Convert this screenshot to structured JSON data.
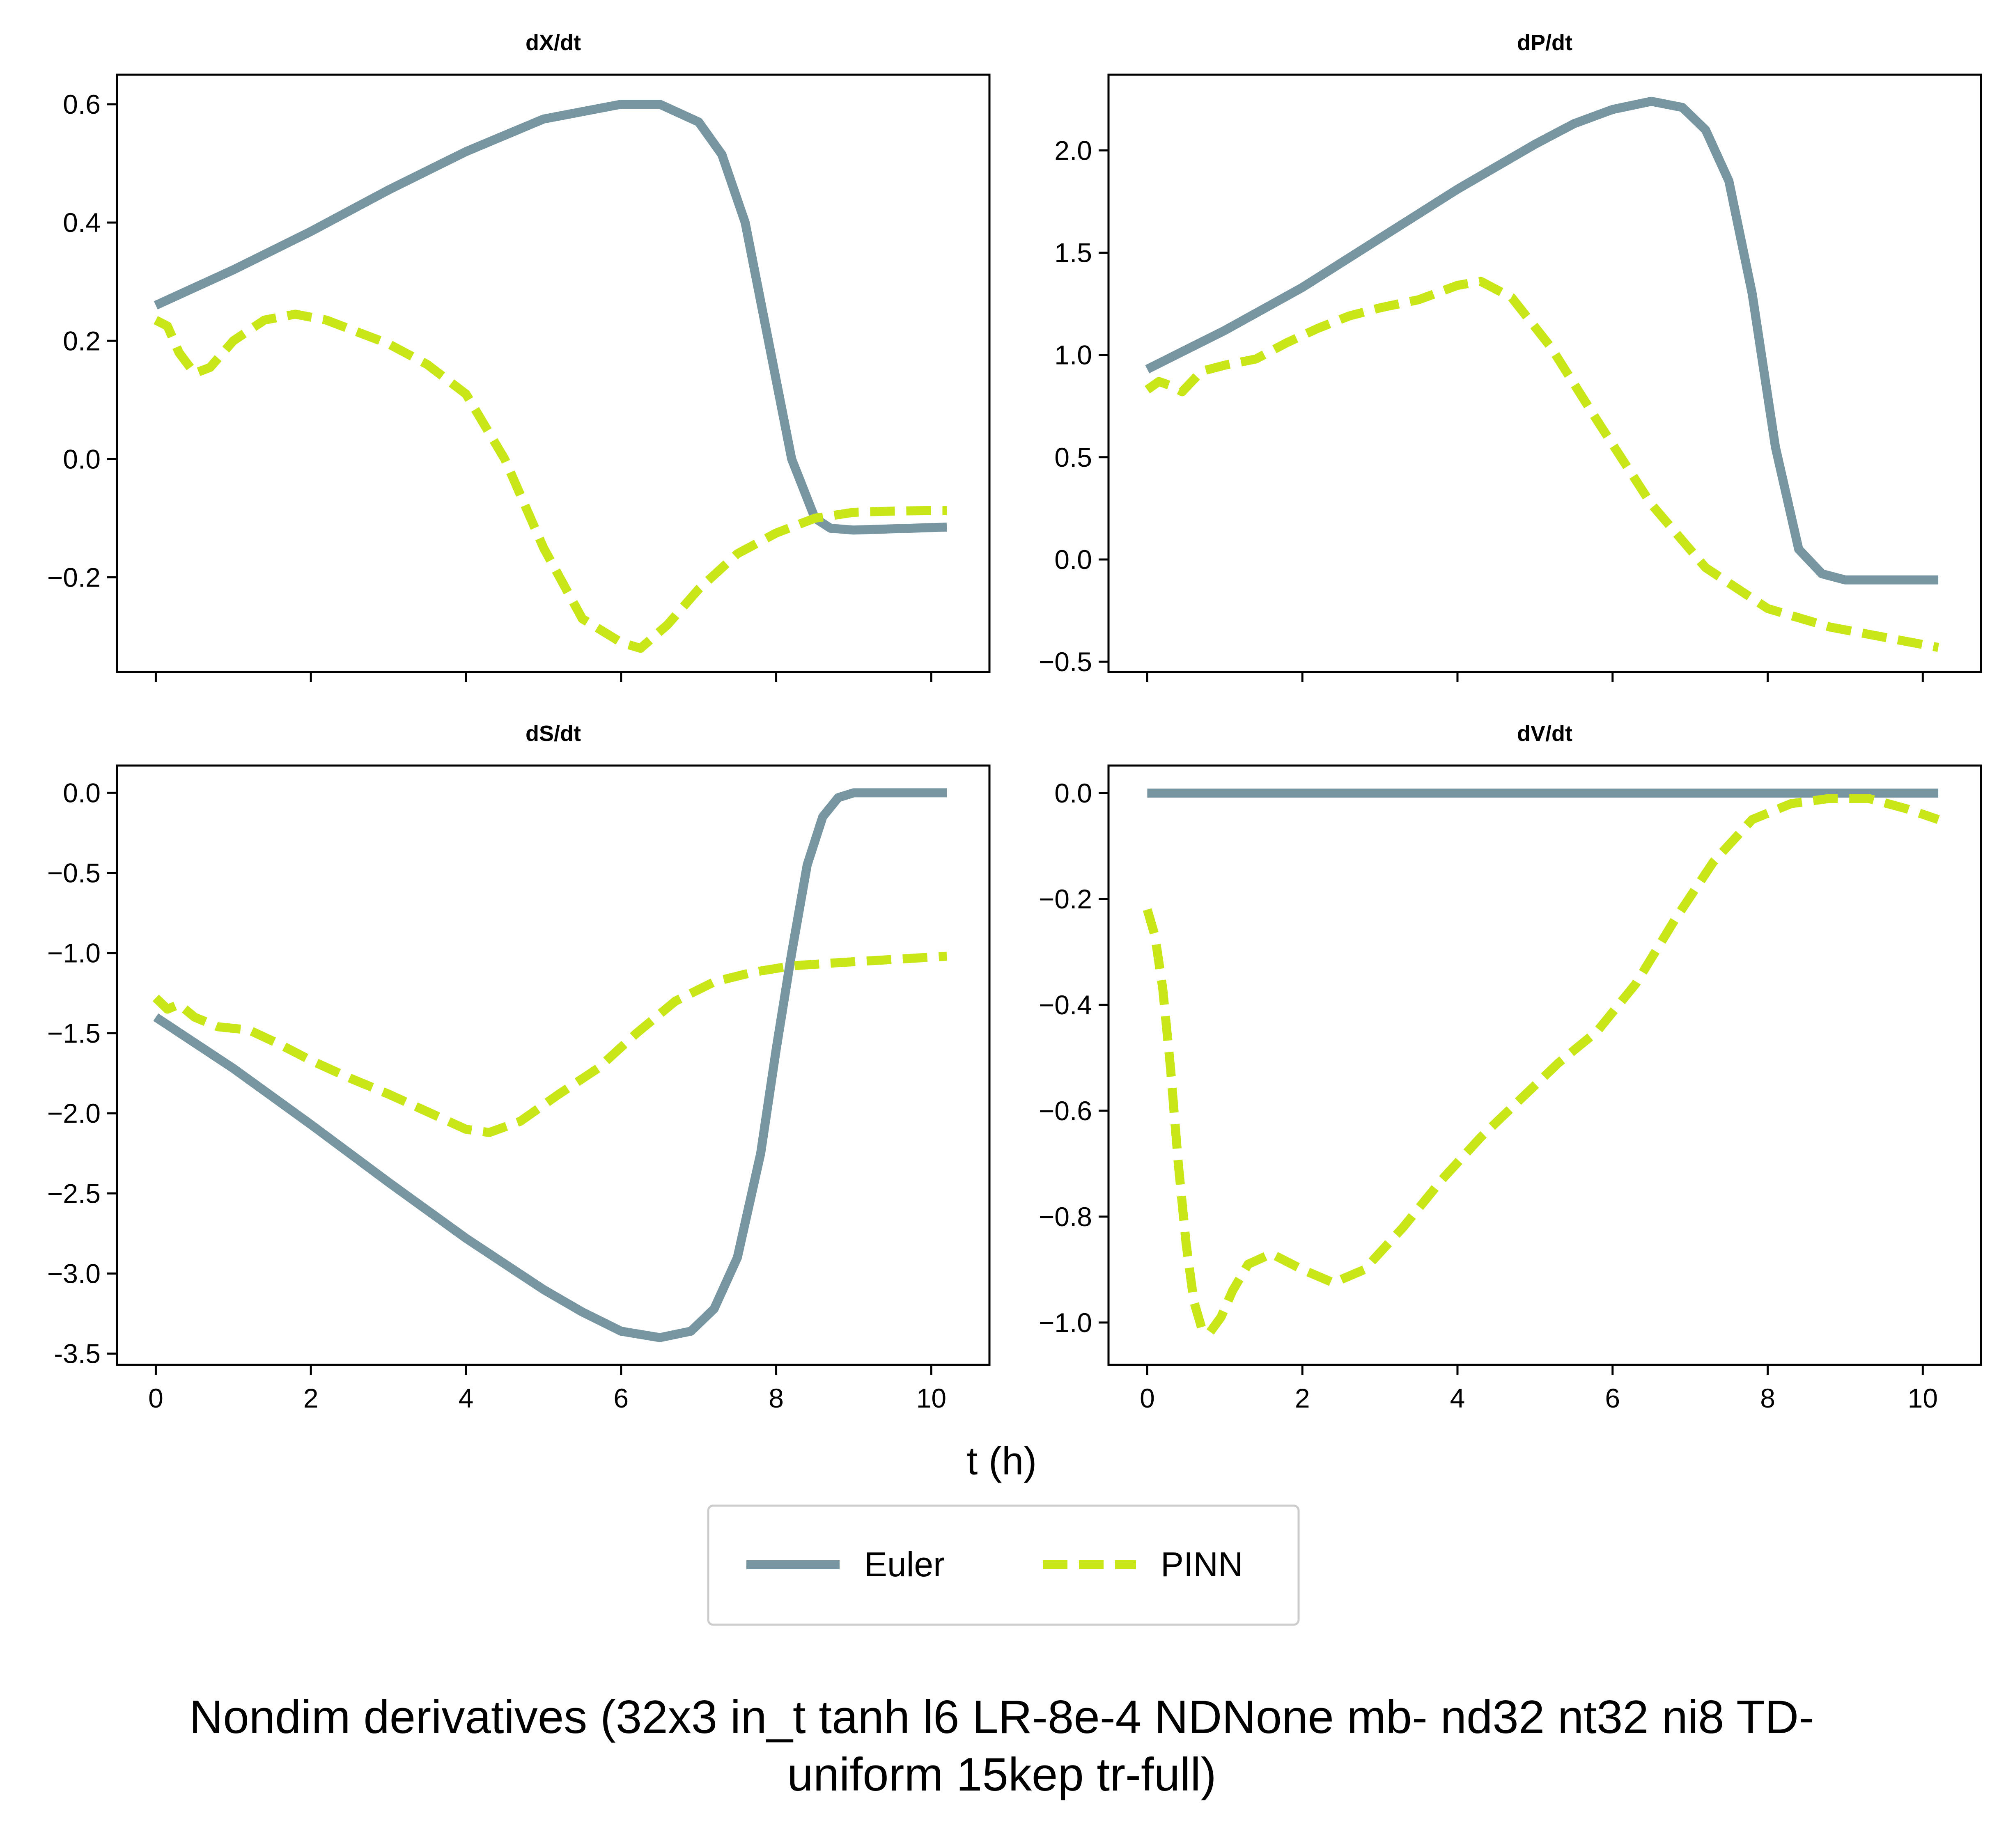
{
  "figure": {
    "suptitle_lines": [
      "Nondim derivatives (32x3 in_t tanh l6 LR-8e-4 NDNone mb- nd32 nt32 ni8 TD-",
      "uniform 15kep tr-full)"
    ],
    "xlabel": "t (h)"
  },
  "legend": {
    "items": [
      {
        "label": "Euler",
        "color": "#7896a2",
        "style": "solid"
      },
      {
        "label": "PINN",
        "color": "#c8e618",
        "style": "dashed"
      }
    ]
  },
  "chart_data": [
    {
      "type": "line",
      "title": "dX/dt",
      "xlim": [
        -0.5,
        10.75
      ],
      "ylim": [
        -0.36,
        0.65
      ],
      "x_ticks": [
        0,
        2,
        4,
        6,
        8,
        10
      ],
      "x_tick_labels": [
        "",
        "",
        "",
        "",
        "",
        ""
      ],
      "y_ticks": [
        -0.2,
        0.0,
        0.2,
        0.4,
        0.6
      ],
      "y_tick_labels": [
        "−0.2",
        "0.0",
        "0.2",
        "0.4",
        "0.6"
      ],
      "series": [
        {
          "name": "Euler",
          "color": "#7896a2",
          "style": "solid",
          "x": [
            0,
            1,
            2,
            3,
            4,
            5,
            6,
            6.5,
            7,
            7.3,
            7.6,
            7.9,
            8.2,
            8.5,
            8.7,
            9,
            10.2
          ],
          "y": [
            0.26,
            0.32,
            0.385,
            0.455,
            0.52,
            0.575,
            0.6,
            0.6,
            0.57,
            0.515,
            0.4,
            0.2,
            0.0,
            -0.1,
            -0.117,
            -0.12,
            -0.115
          ]
        },
        {
          "name": "PINN",
          "color": "#c8e618",
          "style": "dashed",
          "x": [
            0,
            0.15,
            0.3,
            0.5,
            0.7,
            1.0,
            1.4,
            1.8,
            2.2,
            2.6,
            3.0,
            3.5,
            4.0,
            4.5,
            5.0,
            5.5,
            6.0,
            6.25,
            6.6,
            7.0,
            7.5,
            8.0,
            8.5,
            9.0,
            9.5,
            10.0,
            10.2
          ],
          "y": [
            0.235,
            0.225,
            0.18,
            0.145,
            0.155,
            0.2,
            0.235,
            0.245,
            0.235,
            0.215,
            0.195,
            0.16,
            0.11,
            0.0,
            -0.15,
            -0.27,
            -0.31,
            -0.32,
            -0.28,
            -0.22,
            -0.16,
            -0.125,
            -0.1,
            -0.09,
            -0.088,
            -0.087,
            -0.087
          ]
        }
      ]
    },
    {
      "type": "line",
      "title": "dP/dt",
      "xlim": [
        -0.5,
        10.75
      ],
      "ylim": [
        -0.55,
        2.37
      ],
      "x_ticks": [
        0,
        2,
        4,
        6,
        8,
        10
      ],
      "x_tick_labels": [
        "",
        "",
        "",
        "",
        "",
        ""
      ],
      "y_ticks": [
        -0.5,
        0.0,
        0.5,
        1.0,
        1.5,
        2.0
      ],
      "y_tick_labels": [
        "−0.5",
        "0.0",
        "0.5",
        "1.0",
        "1.5",
        "2.0"
      ],
      "series": [
        {
          "name": "Euler",
          "color": "#7896a2",
          "style": "solid",
          "x": [
            0,
            1,
            2,
            3,
            4,
            5,
            5.5,
            6,
            6.5,
            6.9,
            7.2,
            7.5,
            7.8,
            8.1,
            8.4,
            8.7,
            9.0,
            9.5,
            10.2
          ],
          "y": [
            0.93,
            1.12,
            1.33,
            1.57,
            1.81,
            2.03,
            2.13,
            2.2,
            2.24,
            2.21,
            2.1,
            1.85,
            1.3,
            0.55,
            0.05,
            -0.07,
            -0.1,
            -0.1,
            -0.1
          ]
        },
        {
          "name": "PINN",
          "color": "#c8e618",
          "style": "dashed",
          "x": [
            0,
            0.15,
            0.3,
            0.45,
            0.7,
            1.0,
            1.4,
            1.8,
            2.2,
            2.6,
            3.0,
            3.5,
            4.0,
            4.3,
            4.7,
            5.2,
            5.8,
            6.5,
            7.2,
            8.0,
            8.8,
            9.5,
            10.2
          ],
          "y": [
            0.83,
            0.87,
            0.85,
            0.82,
            0.92,
            0.95,
            0.98,
            1.06,
            1.13,
            1.19,
            1.23,
            1.27,
            1.34,
            1.36,
            1.28,
            1.04,
            0.68,
            0.27,
            -0.04,
            -0.24,
            -0.33,
            -0.38,
            -0.43
          ]
        }
      ]
    },
    {
      "type": "line",
      "title": "dS/dt",
      "xlim": [
        -0.5,
        10.75
      ],
      "ylim": [
        -3.57,
        0.17
      ],
      "x_ticks": [
        0,
        2,
        4,
        6,
        8,
        10
      ],
      "x_tick_labels": [
        "0",
        "2",
        "4",
        "6",
        "8",
        "10"
      ],
      "y_ticks": [
        -3.5,
        -3.0,
        -2.5,
        -2.0,
        -1.5,
        -1.0,
        -0.5,
        0.0
      ],
      "y_tick_labels": [
        "-3.5",
        "−3.0",
        "−2.5",
        "−2.0",
        "−1.5",
        "−1.0",
        "−0.5",
        "0.0"
      ],
      "series": [
        {
          "name": "Euler",
          "color": "#7896a2",
          "style": "solid",
          "x": [
            0,
            1,
            2,
            3,
            4,
            5,
            5.5,
            6,
            6.5,
            6.9,
            7.2,
            7.5,
            7.8,
            8.0,
            8.2,
            8.4,
            8.6,
            8.8,
            9.0,
            9.5,
            10.2
          ],
          "y": [
            -1.4,
            -1.72,
            -2.07,
            -2.43,
            -2.78,
            -3.1,
            -3.24,
            -3.36,
            -3.4,
            -3.36,
            -3.22,
            -2.9,
            -2.25,
            -1.6,
            -1.0,
            -0.45,
            -0.15,
            -0.03,
            0.0,
            0.0,
            0.0
          ]
        },
        {
          "name": "PINN",
          "color": "#c8e618",
          "style": "dashed",
          "x": [
            0,
            0.15,
            0.3,
            0.5,
            0.8,
            1.2,
            1.6,
            2.0,
            2.5,
            3.0,
            3.5,
            4.0,
            4.3,
            4.7,
            5.2,
            5.7,
            6.2,
            6.7,
            7.2,
            7.7,
            8.2,
            8.8,
            9.5,
            10.2
          ],
          "y": [
            -1.28,
            -1.35,
            -1.32,
            -1.4,
            -1.46,
            -1.48,
            -1.57,
            -1.67,
            -1.78,
            -1.88,
            -1.99,
            -2.1,
            -2.12,
            -2.05,
            -1.88,
            -1.72,
            -1.5,
            -1.3,
            -1.18,
            -1.12,
            -1.08,
            -1.06,
            -1.04,
            -1.02
          ]
        }
      ]
    },
    {
      "type": "line",
      "title": "dV/dt",
      "xlim": [
        -0.5,
        10.75
      ],
      "ylim": [
        -1.08,
        0.052
      ],
      "x_ticks": [
        0,
        2,
        4,
        6,
        8,
        10
      ],
      "x_tick_labels": [
        "0",
        "2",
        "4",
        "6",
        "8",
        "10"
      ],
      "y_ticks": [
        -1.0,
        -0.8,
        -0.6,
        -0.4,
        -0.2,
        0.0
      ],
      "y_tick_labels": [
        "−1.0",
        "−0.8",
        "−0.6",
        "−0.4",
        "−0.2",
        "0.0"
      ],
      "series": [
        {
          "name": "Euler",
          "color": "#7896a2",
          "style": "solid",
          "x": [
            0,
            10.2
          ],
          "y": [
            0.0,
            0.0
          ]
        },
        {
          "name": "PINN",
          "color": "#c8e618",
          "style": "dashed",
          "x": [
            0,
            0.1,
            0.2,
            0.3,
            0.4,
            0.5,
            0.6,
            0.7,
            0.8,
            0.95,
            1.1,
            1.3,
            1.6,
            2.0,
            2.4,
            2.8,
            3.3,
            3.8,
            4.3,
            4.8,
            5.3,
            5.8,
            6.3,
            6.8,
            7.3,
            7.8,
            8.3,
            8.8,
            9.3,
            9.8,
            10.2
          ],
          "y": [
            -0.22,
            -0.27,
            -0.37,
            -0.52,
            -0.7,
            -0.85,
            -0.96,
            -1.01,
            -1.02,
            -0.99,
            -0.94,
            -0.89,
            -0.87,
            -0.9,
            -0.925,
            -0.9,
            -0.82,
            -0.73,
            -0.65,
            -0.58,
            -0.51,
            -0.45,
            -0.36,
            -0.24,
            -0.13,
            -0.05,
            -0.02,
            -0.01,
            -0.01,
            -0.03,
            -0.05
          ]
        }
      ]
    }
  ]
}
